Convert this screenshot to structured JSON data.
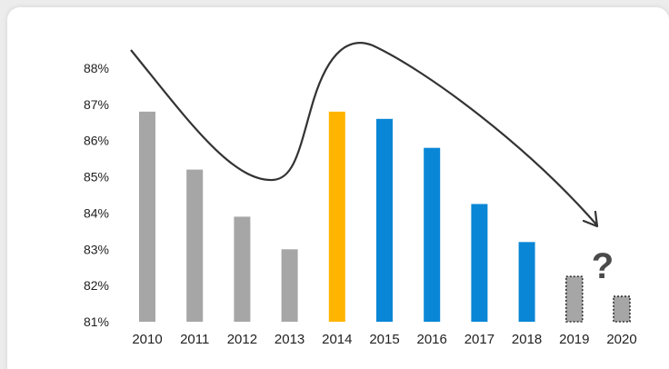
{
  "colors": {
    "historic": "#a6a6a6",
    "highlight": "#ffb400",
    "recent": "#0a86d6",
    "forecast": "#a6a6a6",
    "trend_line": "#333333",
    "background": "#ffffff"
  },
  "annotation": {
    "question_mark": "?"
  },
  "chart_data": {
    "type": "bar",
    "title": "",
    "xlabel": "",
    "ylabel": "",
    "ylim": [
      81,
      88
    ],
    "yticks": [
      "81%",
      "82%",
      "83%",
      "84%",
      "85%",
      "86%",
      "87%",
      "88%"
    ],
    "ytick_values": [
      81,
      82,
      83,
      84,
      85,
      86,
      87,
      88
    ],
    "categories": [
      "2010",
      "2011",
      "2012",
      "2013",
      "2014",
      "2015",
      "2016",
      "2017",
      "2018",
      "2019",
      "2020"
    ],
    "values": [
      86.8,
      85.2,
      83.9,
      83.0,
      86.8,
      86.6,
      85.8,
      84.25,
      83.2,
      82.25,
      81.7
    ],
    "bar_styles": [
      "historic",
      "historic",
      "historic",
      "historic",
      "highlight",
      "recent",
      "recent",
      "recent",
      "recent",
      "forecast",
      "forecast"
    ],
    "forecast_dotted": [
      false,
      false,
      false,
      false,
      false,
      false,
      false,
      false,
      false,
      true,
      true
    ],
    "grid": false,
    "legend": "none",
    "trend_curve": {
      "shape": "decline, dip near 2013, peak after 2014, then steady decline with arrowhead toward 2020"
    }
  }
}
